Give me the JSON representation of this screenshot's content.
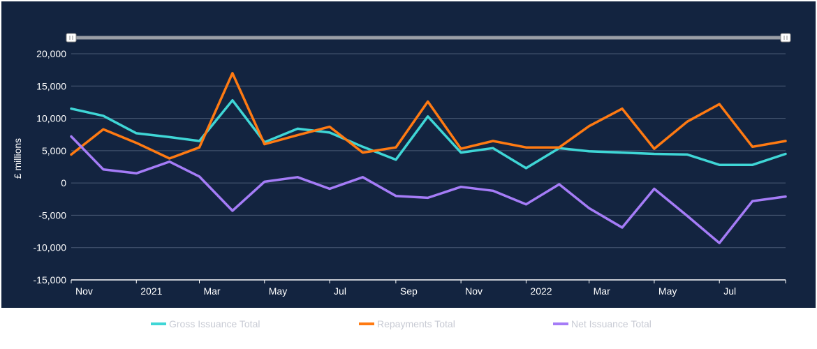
{
  "colors": {
    "background": "#132440",
    "gridline": "#4a5a75",
    "axis_line": "#ffffff",
    "text": "#ffffff",
    "legend_text": "#c8cbd4",
    "navigator": "#9a9ea6"
  },
  "chart_data": {
    "type": "line",
    "ylabel": "£ millions",
    "xlabel": "",
    "ylim": [
      -15000,
      20000
    ],
    "y_ticks": [
      "20,000",
      "15,000",
      "10,000",
      "5,000",
      "0",
      "-5,000",
      "-10,000",
      "-15,000"
    ],
    "y_tick_values": [
      20000,
      15000,
      10000,
      5000,
      0,
      -5000,
      -10000,
      -15000
    ],
    "x_tick_labels": [
      "Nov",
      "2021",
      "Mar",
      "May",
      "Jul",
      "Sep",
      "Nov",
      "2022",
      "Mar",
      "May",
      "Jul"
    ],
    "x_tick_dates": [
      "2020-11",
      "2021-01",
      "2021-03",
      "2021-05",
      "2021-07",
      "2021-09",
      "2021-11",
      "2022-01",
      "2022-03",
      "2022-05",
      "2022-07"
    ],
    "x": [
      "2020-11",
      "2020-12",
      "2021-01",
      "2021-02",
      "2021-03",
      "2021-04",
      "2021-05",
      "2021-06",
      "2021-07",
      "2021-08",
      "2021-09",
      "2021-10",
      "2021-11",
      "2021-12",
      "2022-01",
      "2022-02",
      "2022-03",
      "2022-04",
      "2022-05",
      "2022-06",
      "2022-07",
      "2022-08",
      "2022-09"
    ],
    "grid": true,
    "legend_position": "bottom",
    "series": [
      {
        "name": "Gross Issuance Total",
        "color": "#3fd6d6",
        "values": [
          11500,
          10400,
          7700,
          7100,
          6500,
          12800,
          6300,
          8400,
          7800,
          5600,
          3600,
          10300,
          4700,
          5400,
          2300,
          5400,
          4900,
          4700,
          4500,
          4400,
          2800,
          2800,
          4500
        ]
      },
      {
        "name": "Repayments Total",
        "color": "#ff7a12",
        "values": [
          4400,
          8300,
          6200,
          3800,
          5500,
          17000,
          6000,
          7400,
          8700,
          4700,
          5500,
          12600,
          5300,
          6500,
          5500,
          5500,
          8800,
          11500,
          5300,
          9500,
          12200,
          5600,
          6500
        ]
      },
      {
        "name": "Net Issuance Total",
        "color": "#a57cf7",
        "values": [
          7200,
          2100,
          1500,
          3300,
          1000,
          -4300,
          200,
          900,
          -900,
          900,
          -2000,
          -2300,
          -600,
          -1200,
          -3300,
          -200,
          -3900,
          -6900,
          -900,
          -5100,
          -9300,
          -2800,
          -2100
        ]
      }
    ]
  }
}
